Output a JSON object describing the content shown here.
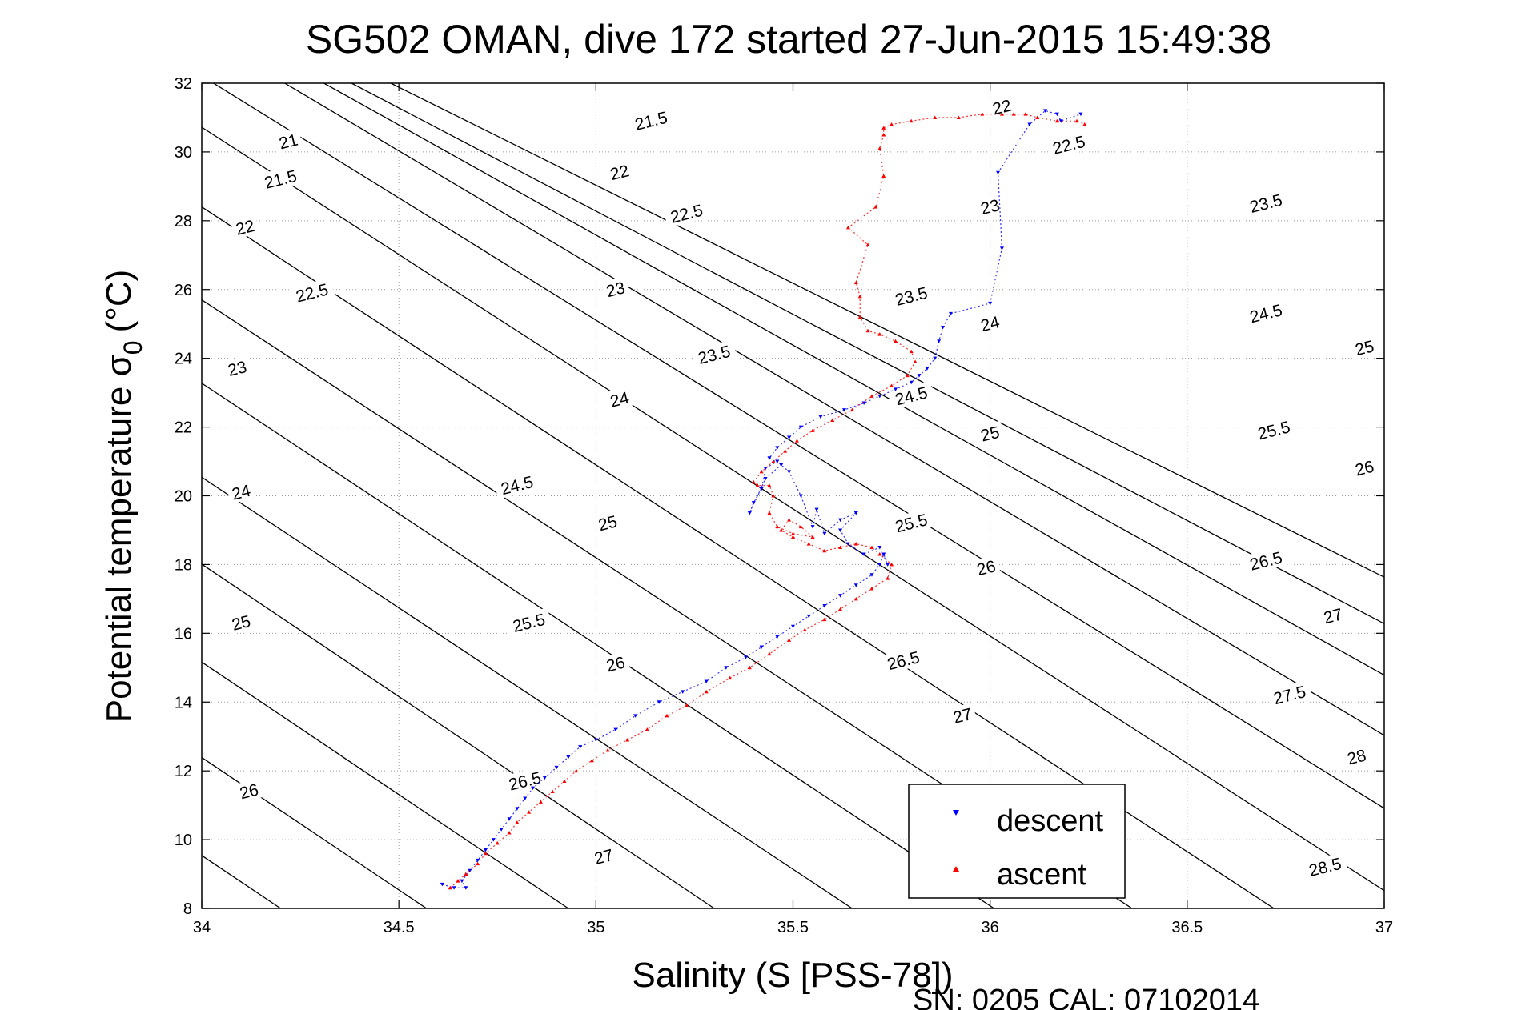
{
  "chart_data": {
    "type": "scatter",
    "title": "SG502 OMAN, dive 172 started 27-Jun-2015 15:49:38",
    "xlabel": "Salinity (S [PSS-78])",
    "ylabel_main": "Potential temperature σ",
    "ylabel_sub": "0",
    "ylabel_unit": "(°C)",
    "footer": "SN: 0205  CAL: 07102014",
    "xlim": [
      34,
      37
    ],
    "ylim": [
      8,
      32
    ],
    "xticks": [
      34,
      34.5,
      35,
      35.5,
      36,
      36.5,
      37
    ],
    "xtick_labels": [
      "34",
      "34.5",
      "35",
      "35.5",
      "36",
      "36.5",
      "37"
    ],
    "yticks": [
      8,
      10,
      12,
      14,
      16,
      18,
      20,
      22,
      24,
      26,
      28,
      30,
      32
    ],
    "ytick_labels": [
      "8",
      "10",
      "12",
      "14",
      "16",
      "18",
      "20",
      "22",
      "24",
      "26",
      "28",
      "30",
      "32"
    ],
    "grid": true,
    "legend_position": "bottom-right",
    "density_contours": [
      {
        "level": 21.0,
        "label": "21",
        "s0": 33.47,
        "slope": 3.85
      },
      {
        "level": 21.5,
        "label": "21.5",
        "s0": 33.83,
        "slope": 3.85
      },
      {
        "level": 22.0,
        "label": "22",
        "s0": 34.2,
        "slope": 3.85
      },
      {
        "level": 22.5,
        "label": "22.5",
        "s0": 34.57,
        "slope": 3.85
      },
      {
        "level": 23.0,
        "label": "23",
        "s0": 34.93,
        "slope": 3.85
      },
      {
        "level": 23.5,
        "label": "23.5",
        "s0": 35.3,
        "slope": 3.85
      },
      {
        "level": 24.0,
        "label": "24",
        "s0": 35.65,
        "slope": 3.8
      },
      {
        "level": 24.5,
        "label": "24.5",
        "s0": 36.01,
        "slope": 3.8
      },
      {
        "level": 25.0,
        "label": "25",
        "s0": 36.36,
        "slope": 3.75
      },
      {
        "level": 25.5,
        "label": "25.5",
        "s0": 36.72,
        "slope": 3.75
      },
      {
        "level": 26.0,
        "label": "26",
        "s0": 37.07,
        "slope": 3.7
      },
      {
        "level": 26.5,
        "label": "26.5",
        "s0": 37.41,
        "slope": 3.55
      },
      {
        "level": 27.0,
        "label": "27",
        "s0": 37.74,
        "slope": 3.4
      },
      {
        "level": 27.5,
        "label": "27.5",
        "s0": 38.06,
        "slope": 3.2
      },
      {
        "level": 28.0,
        "label": "28",
        "s0": 38.38,
        "slope": 3.0
      },
      {
        "level": 28.5,
        "label": "28.5",
        "s0": 38.69,
        "slope": 2.85
      }
    ],
    "contour_label_positions": [
      {
        "label": "21",
        "x": 34.22,
        "y": 30.3
      },
      {
        "label": "21.5",
        "x": 35.14,
        "y": 30.9
      },
      {
        "label": "21.5",
        "x": 34.2,
        "y": 29.2
      },
      {
        "label": "22",
        "x": 35.06,
        "y": 29.4
      },
      {
        "label": "22",
        "x": 36.03,
        "y": 31.3
      },
      {
        "label": "22",
        "x": 34.11,
        "y": 27.8
      },
      {
        "label": "22.5",
        "x": 35.23,
        "y": 28.2
      },
      {
        "label": "22.5",
        "x": 36.2,
        "y": 30.2
      },
      {
        "label": "22.5",
        "x": 34.28,
        "y": 25.9
      },
      {
        "label": "23",
        "x": 35.05,
        "y": 26.0
      },
      {
        "label": "23",
        "x": 36.0,
        "y": 28.4
      },
      {
        "label": "23",
        "x": 34.09,
        "y": 23.7
      },
      {
        "label": "23.5",
        "x": 35.8,
        "y": 25.8
      },
      {
        "label": "23.5",
        "x": 35.3,
        "y": 24.1
      },
      {
        "label": "23.5",
        "x": 36.7,
        "y": 28.5
      },
      {
        "label": "24",
        "x": 35.06,
        "y": 22.8
      },
      {
        "label": "24",
        "x": 36.0,
        "y": 25.0
      },
      {
        "label": "24",
        "x": 34.1,
        "y": 20.1
      },
      {
        "label": "24.5",
        "x": 35.8,
        "y": 22.9
      },
      {
        "label": "24.5",
        "x": 34.8,
        "y": 20.3
      },
      {
        "label": "24.5",
        "x": 36.7,
        "y": 25.3
      },
      {
        "label": "25",
        "x": 36.0,
        "y": 21.8
      },
      {
        "label": "25",
        "x": 35.03,
        "y": 19.2
      },
      {
        "label": "25",
        "x": 34.1,
        "y": 16.3
      },
      {
        "label": "25",
        "x": 36.95,
        "y": 24.3
      },
      {
        "label": "25.5",
        "x": 35.8,
        "y": 19.2
      },
      {
        "label": "25.5",
        "x": 34.83,
        "y": 16.3
      },
      {
        "label": "25.5",
        "x": 36.72,
        "y": 21.9
      },
      {
        "label": "26",
        "x": 35.05,
        "y": 15.1
      },
      {
        "label": "26",
        "x": 35.99,
        "y": 17.9
      },
      {
        "label": "26",
        "x": 34.12,
        "y": 11.4
      },
      {
        "label": "26",
        "x": 36.95,
        "y": 20.8
      },
      {
        "label": "26.5",
        "x": 35.78,
        "y": 15.2
      },
      {
        "label": "26.5",
        "x": 34.82,
        "y": 11.7
      },
      {
        "label": "26.5",
        "x": 36.7,
        "y": 18.1
      },
      {
        "label": "27",
        "x": 35.02,
        "y": 9.5
      },
      {
        "label": "27",
        "x": 35.93,
        "y": 13.6
      },
      {
        "label": "27",
        "x": 36.87,
        "y": 16.5
      },
      {
        "label": "27.5",
        "x": 36.76,
        "y": 14.2
      },
      {
        "label": "28",
        "x": 36.93,
        "y": 12.4
      },
      {
        "label": "28.5",
        "x": 36.85,
        "y": 9.2
      }
    ],
    "series": [
      {
        "name": "descent",
        "color": "#0000ff",
        "marker": "triangle-down",
        "x": [
          34.61,
          34.64,
          34.67,
          34.66,
          34.68,
          34.7,
          34.72,
          34.74,
          34.76,
          34.78,
          34.8,
          34.82,
          34.84,
          34.87,
          34.9,
          34.93,
          34.96,
          35.0,
          35.05,
          35.1,
          35.16,
          35.22,
          35.28,
          35.33,
          35.38,
          35.42,
          35.46,
          35.5,
          35.54,
          35.58,
          35.62,
          35.66,
          35.7,
          35.72,
          35.73,
          35.74,
          35.72,
          35.68,
          35.64,
          35.62,
          35.66,
          35.62,
          35.58,
          35.56,
          35.55,
          35.52,
          35.49,
          35.46,
          35.43,
          35.42,
          35.4,
          35.39,
          35.43,
          35.47,
          35.44,
          35.46,
          35.49,
          35.52,
          35.57,
          35.63,
          35.68,
          35.72,
          35.76,
          35.8,
          35.82,
          35.84,
          35.86,
          35.87,
          35.88,
          35.9,
          36.0,
          36.03,
          36.02,
          36.1,
          36.14,
          36.17,
          36.18,
          36.23
        ],
        "y": [
          8.7,
          8.6,
          8.6,
          8.8,
          9.1,
          9.4,
          9.7,
          10.0,
          10.3,
          10.6,
          10.9,
          11.2,
          11.5,
          11.8,
          12.1,
          12.4,
          12.7,
          12.9,
          13.2,
          13.6,
          14.0,
          14.3,
          14.6,
          15.0,
          15.3,
          15.6,
          15.9,
          16.2,
          16.5,
          16.8,
          17.1,
          17.4,
          17.7,
          18.0,
          18.3,
          18.0,
          18.5,
          18.3,
          18.6,
          19.0,
          19.5,
          19.3,
          18.9,
          19.6,
          19.1,
          20.0,
          20.7,
          21.0,
          20.8,
          20.2,
          19.8,
          19.5,
          20.5,
          20.9,
          21.1,
          21.4,
          21.7,
          22.0,
          22.3,
          22.5,
          22.7,
          22.9,
          23.1,
          23.3,
          23.5,
          23.7,
          24.0,
          24.5,
          24.9,
          25.3,
          25.6,
          27.2,
          29.4,
          30.8,
          31.2,
          31.1,
          30.9,
          31.1
        ]
      },
      {
        "name": "ascent",
        "color": "#ff0000",
        "marker": "triangle-up",
        "x": [
          34.63,
          34.65,
          34.67,
          34.7,
          34.72,
          34.75,
          34.78,
          34.8,
          34.83,
          34.86,
          34.89,
          34.92,
          34.95,
          34.99,
          35.03,
          35.08,
          35.13,
          35.18,
          35.23,
          35.28,
          35.34,
          35.39,
          35.44,
          35.49,
          35.53,
          35.58,
          35.62,
          35.66,
          35.7,
          35.74,
          35.75,
          35.72,
          35.7,
          35.66,
          35.62,
          35.58,
          35.54,
          35.5,
          35.47,
          35.49,
          35.52,
          35.55,
          35.5,
          35.46,
          35.44,
          35.45,
          35.44,
          35.41,
          35.4,
          35.42,
          35.45,
          35.48,
          35.51,
          35.55,
          35.6,
          35.65,
          35.7,
          35.75,
          35.79,
          35.81,
          35.8,
          35.76,
          35.72,
          35.69,
          35.67,
          35.67,
          35.66,
          35.69,
          35.64,
          35.71,
          35.73,
          35.72,
          35.73,
          35.73,
          35.75,
          35.8,
          35.86,
          35.92,
          35.98,
          36.03,
          36.06,
          36.09,
          36.12,
          36.17,
          36.22,
          36.24
        ],
        "y": [
          8.6,
          8.8,
          9.0,
          9.3,
          9.6,
          9.9,
          10.2,
          10.5,
          10.8,
          11.1,
          11.4,
          11.7,
          12.0,
          12.3,
          12.6,
          12.9,
          13.2,
          13.6,
          13.9,
          14.3,
          14.7,
          15.0,
          15.4,
          15.8,
          16.1,
          16.4,
          16.7,
          17.0,
          17.3,
          17.6,
          18.0,
          18.3,
          18.5,
          18.6,
          18.5,
          18.4,
          18.6,
          18.8,
          19.0,
          19.3,
          19.1,
          18.8,
          18.9,
          19.1,
          19.5,
          20.0,
          20.3,
          20.3,
          20.4,
          20.7,
          21.0,
          21.3,
          21.6,
          21.9,
          22.2,
          22.5,
          22.9,
          23.2,
          23.5,
          23.9,
          24.2,
          24.5,
          24.7,
          24.8,
          25.2,
          25.8,
          26.2,
          27.3,
          27.8,
          28.4,
          29.3,
          30.1,
          30.5,
          30.7,
          30.8,
          30.9,
          31.0,
          31.0,
          31.1,
          31.1,
          31.1,
          31.1,
          31.0,
          30.9,
          30.9,
          30.8
        ]
      }
    ]
  }
}
